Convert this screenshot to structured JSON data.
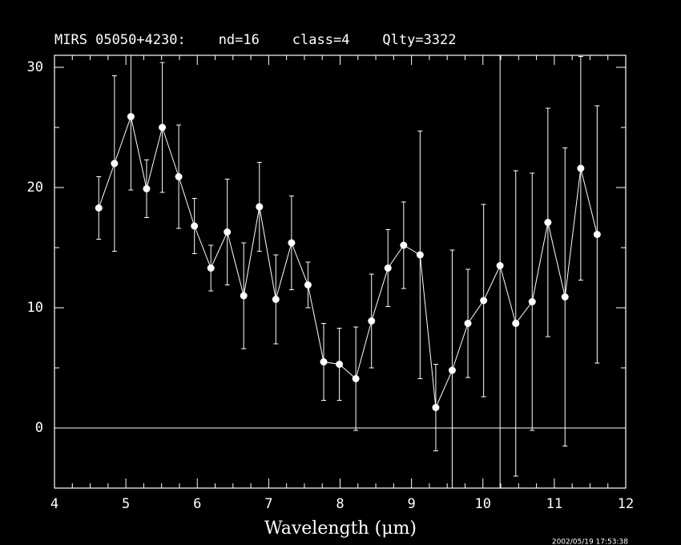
{
  "chart_data": {
    "type": "errorbar",
    "title": "MIRS 05050+4230:    nd=16    class=4    Qlty=3322",
    "x_label": "Wavelength (μm)",
    "timestamp": "2002/05/19 17:53:38",
    "color": "#ffffff",
    "x": [
      4.62,
      4.84,
      5.07,
      5.29,
      5.51,
      5.74,
      5.96,
      6.19,
      6.42,
      6.65,
      6.87,
      7.1,
      7.32,
      7.55,
      7.77,
      7.99,
      8.22,
      8.44,
      8.67,
      8.89,
      9.12,
      9.34,
      9.57,
      9.79,
      10.01,
      10.24,
      10.46,
      10.69,
      10.91,
      11.15,
      11.37,
      11.6
    ],
    "values": [
      18.3,
      22.0,
      25.9,
      19.9,
      25.0,
      20.9,
      16.8,
      13.3,
      16.3,
      11.0,
      18.4,
      10.7,
      15.4,
      11.9,
      5.5,
      5.3,
      4.1,
      8.9,
      13.3,
      15.2,
      14.4,
      1.7,
      4.8,
      8.7,
      10.6,
      13.5,
      8.7,
      10.5,
      17.1,
      10.9,
      21.6,
      16.1
    ],
    "errors": [
      2.6,
      7.3,
      6.1,
      2.4,
      5.4,
      4.3,
      2.3,
      1.9,
      4.4,
      4.4,
      3.7,
      3.7,
      3.9,
      1.9,
      3.2,
      3.0,
      4.3,
      3.9,
      3.2,
      3.6,
      10.3,
      3.6,
      10.0,
      4.5,
      8.0,
      25.0,
      12.7,
      10.7,
      9.5,
      12.4,
      9.3,
      10.7
    ],
    "xlim": [
      4,
      12
    ],
    "xticks": [
      4,
      5,
      6,
      7,
      8,
      9,
      10,
      11,
      12
    ],
    "xminor_ticks": [
      4.25,
      4.5,
      4.75,
      5.25,
      5.5,
      5.75,
      6.25,
      6.5,
      6.75,
      7.25,
      7.5,
      7.75,
      8.25,
      8.5,
      8.75,
      9.25,
      9.5,
      9.75,
      10.25,
      10.5,
      10.75,
      11.25,
      11.5,
      11.75
    ],
    "ylim": [
      -5,
      31
    ],
    "yticks": [
      0,
      10,
      20,
      30
    ],
    "yminor_ticks": [
      -5,
      5,
      15,
      25
    ],
    "hline": 0
  }
}
